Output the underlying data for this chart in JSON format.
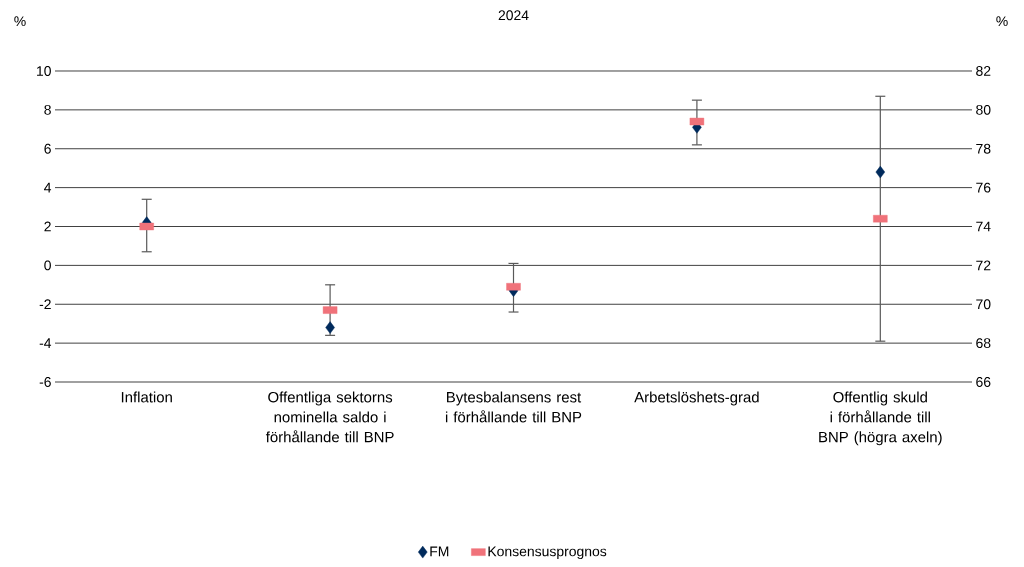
{
  "chart_data": {
    "type": "scatter",
    "title": "2024",
    "ylabel": "%",
    "y2label": "%",
    "categories": [
      "Inflation",
      "Offentliga sektorns nominella saldo i förhållande till BNP",
      "Bytesbalansens rest i förhållande till BNP",
      "Arbetslöshets-grad",
      "Offentlig skuld i förhållande till BNP (högra axeln)"
    ],
    "series": [
      {
        "name": "FM",
        "color": "#002a5c",
        "marker": "diamond",
        "values": [
          2.2,
          -3.2,
          -1.3,
          7.1,
          null
        ]
      },
      {
        "name": "Konsensusprognos",
        "color": "#f0727a",
        "values": [
          2.0,
          -2.3,
          -1.1,
          7.4,
          null
        ],
        "errors": [
          [
            0.7,
            3.4
          ],
          [
            -3.6,
            -1.0
          ],
          [
            -2.4,
            0.1
          ],
          [
            6.2,
            8.5
          ],
          null
        ]
      },
      {
        "color": "#002a5c",
        "marker": "diamond",
        "axis": "y2",
        "values": [
          null,
          null,
          null,
          null,
          76.8
        ]
      },
      {
        "color": "#f0727a",
        "axis": "y2",
        "values": [
          null,
          null,
          null,
          null,
          74.4
        ],
        "errors": [
          null,
          null,
          null,
          null,
          [
            68.1,
            80.7
          ]
        ]
      }
    ],
    "ylim": [
      -6,
      10
    ],
    "yticks": [
      -6,
      -4,
      -2,
      0,
      2,
      4,
      6,
      8,
      10
    ],
    "y2lim": [
      66,
      82
    ],
    "y2ticks": [
      66,
      68,
      70,
      72,
      74,
      76,
      78,
      80,
      82
    ],
    "grid": "y",
    "legend": "bottom"
  }
}
